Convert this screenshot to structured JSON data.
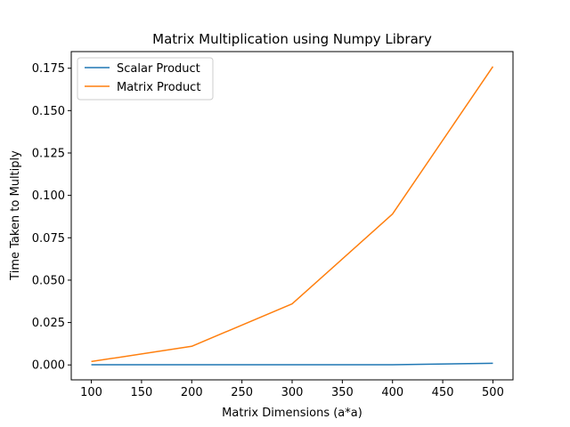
{
  "chart_data": {
    "type": "line",
    "title": "Matrix Multiplication using Numpy Library",
    "xlabel": "Matrix Dimensions (a*a)",
    "ylabel": "Time Taken to Multiply",
    "x": [
      100,
      200,
      300,
      400,
      500
    ],
    "xlim": [
      80,
      520
    ],
    "ylim": [
      -0.0088,
      0.1848
    ],
    "xticks": [
      100,
      150,
      200,
      250,
      300,
      350,
      400,
      450,
      500
    ],
    "yticks": [
      0.0,
      0.025,
      0.05,
      0.075,
      0.1,
      0.125,
      0.15,
      0.175
    ],
    "ytick_labels": [
      "0.000",
      "0.025",
      "0.050",
      "0.075",
      "0.100",
      "0.125",
      "0.150",
      "0.175"
    ],
    "grid": false,
    "legend_position": "top-left",
    "series": [
      {
        "name": "Scalar Product",
        "color": "#1f77b4",
        "values": [
          0.0001,
          0.0001,
          0.0001,
          0.0001,
          0.001
        ]
      },
      {
        "name": "Matrix Product",
        "color": "#ff7f0e",
        "values": [
          0.002,
          0.011,
          0.036,
          0.089,
          0.176
        ]
      }
    ]
  }
}
